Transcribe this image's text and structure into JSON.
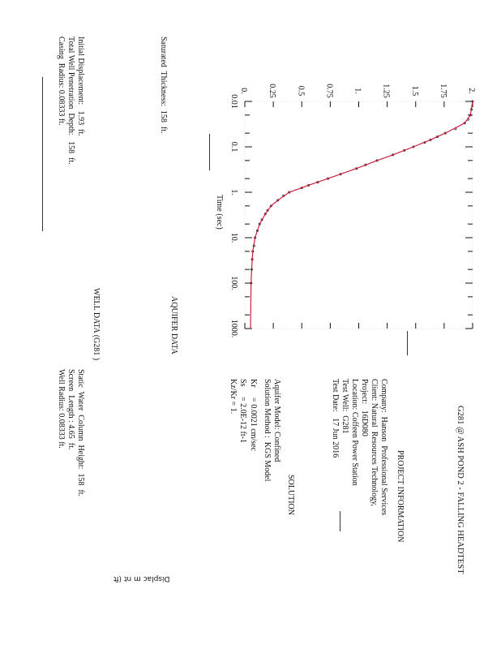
{
  "title": "G281 @ ASH POND 2 - FALLING HEADTEST",
  "project_info": {
    "heading": "PROJECT INFORMATION",
    "lines": [
      "Company:  Hanson  Professional Services",
      "Client: Natural  Resources Technology,",
      "Project:   16D080",
      "Location: Coffeen Power Station",
      "Test Well:  G281",
      "Test Date:   17 Jun 2016"
    ]
  },
  "solution": {
    "heading": "SOLUTION",
    "lines": [
      "Aquifer Model: Confined",
      "Solution Method :  KGS Model",
      "Kr     = 0.0021 cm/sec",
      "Ss     = 2.0E-12 ft-1",
      "Kz/Kr = 1."
    ]
  },
  "aquifer_data": {
    "heading": "AQUIFER DATA",
    "lines": [
      "Saturated  Thickness:  158  ft."
    ]
  },
  "well_data": {
    "heading": "WELL DATA (G281 )",
    "left": [
      "Initial Displacement:   1.93  ft.",
      "Total Well Penetration  Depth:   158  ft.",
      "Casing  Radius: 0.08333 ft."
    ],
    "right": [
      "Static  Water  Column  Height:  158  ft.",
      "Screen  Length : 4.65  ft.",
      "Well Radius: 0.08333 ft."
    ]
  },
  "chart_data": {
    "type": "line",
    "xlabel": "Time (sec)",
    "ylabel": "Displac m nt (ft",
    "x_scale": "log",
    "xlim": [
      0.01,
      1000
    ],
    "ylim": [
      0,
      2
    ],
    "x_ticks": [
      "0.01",
      "0.1",
      "1.",
      "10.",
      "100.",
      "1000."
    ],
    "y_ticks": [
      "0.",
      "0.25",
      "0.5",
      "0.75",
      "1.",
      "1.25",
      "1.5",
      "1.75",
      "2."
    ],
    "orientation": "rotated 90 degrees clockwise",
    "series": [
      {
        "kind": "observed points",
        "color": "#222222",
        "x": [
          0.01,
          0.015,
          0.02,
          0.025,
          0.03,
          0.04,
          0.05,
          0.06,
          0.07,
          0.08,
          0.1,
          0.12,
          0.15,
          0.2,
          0.25,
          0.3,
          0.4,
          0.5,
          0.6,
          0.7,
          0.8,
          1,
          1.2,
          1.5,
          2,
          2.5,
          3,
          4,
          5,
          7,
          10,
          15,
          20,
          30,
          50,
          100
        ],
        "y": [
          2.0,
          1.99,
          1.98,
          1.96,
          1.93,
          1.85,
          1.76,
          1.69,
          1.63,
          1.58,
          1.48,
          1.4,
          1.3,
          1.16,
          1.06,
          0.98,
          0.84,
          0.73,
          0.64,
          0.56,
          0.5,
          0.39,
          0.34,
          0.29,
          0.23,
          0.2,
          0.18,
          0.15,
          0.13,
          0.11,
          0.09,
          0.08,
          0.07,
          0.065,
          0.06,
          0.055
        ]
      },
      {
        "kind": "fitted curve",
        "color": "#cc1f3f",
        "x": [
          0.01,
          0.02,
          0.03,
          0.05,
          0.07,
          0.1,
          0.15,
          0.2,
          0.3,
          0.5,
          0.7,
          1,
          1.5,
          2,
          3,
          5,
          10,
          20,
          50,
          100,
          1000
        ],
        "y": [
          2.0,
          1.98,
          1.93,
          1.76,
          1.63,
          1.48,
          1.3,
          1.16,
          0.98,
          0.73,
          0.56,
          0.39,
          0.29,
          0.23,
          0.18,
          0.13,
          0.09,
          0.07,
          0.06,
          0.055,
          0.05
        ]
      }
    ]
  }
}
